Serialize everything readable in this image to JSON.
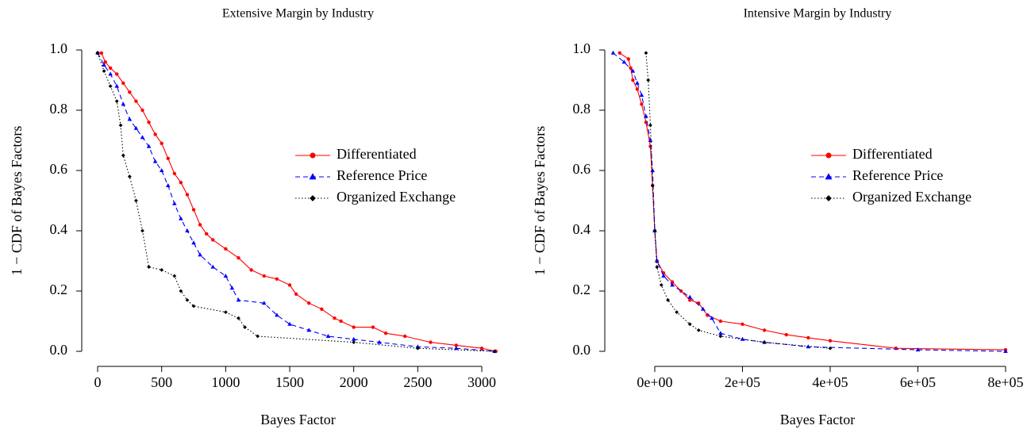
{
  "chart_data": [
    {
      "type": "line",
      "title": "Extensive Margin by Industry",
      "x_label": "Bayes Factor",
      "y_label": "1 − CDF of Bayes Factors",
      "xlim": [
        -124,
        3130
      ],
      "ylim": [
        -0.05,
        1.05
      ],
      "xticks": [
        0,
        500,
        1000,
        1500,
        2000,
        2500,
        3000
      ],
      "yticks": [
        {
          "value": 0,
          "label": "0.0"
        },
        0.2,
        0.4,
        0.6,
        0.8,
        {
          "value": 1,
          "label": "1.0"
        }
      ],
      "legend": "right",
      "series": [
        {
          "name": "Differentiated",
          "color": "#ff0000",
          "marker": "circle",
          "dash": "solid",
          "x": [
            0,
            30,
            60,
            100,
            150,
            200,
            250,
            300,
            350,
            400,
            450,
            500,
            550,
            600,
            650,
            700,
            750,
            800,
            850,
            900,
            1000,
            1100,
            1200,
            1300,
            1400,
            1500,
            1550,
            1650,
            1750,
            1850,
            1900,
            2000,
            2150,
            2250,
            2400,
            2600,
            2800,
            3000,
            3110
          ],
          "values": [
            0.99,
            0.99,
            0.96,
            0.94,
            0.92,
            0.89,
            0.86,
            0.83,
            0.8,
            0.76,
            0.72,
            0.69,
            0.64,
            0.59,
            0.56,
            0.52,
            0.47,
            0.42,
            0.39,
            0.37,
            0.34,
            0.31,
            0.27,
            0.25,
            0.24,
            0.22,
            0.19,
            0.16,
            0.14,
            0.11,
            0.1,
            0.08,
            0.08,
            0.06,
            0.05,
            0.03,
            0.02,
            0.01,
            0.0
          ]
        },
        {
          "name": "Reference Price",
          "color": "#0000ff",
          "marker": "triangle",
          "dash": "dashed",
          "x": [
            0,
            50,
            100,
            150,
            200,
            250,
            300,
            350,
            400,
            450,
            500,
            550,
            600,
            650,
            700,
            750,
            800,
            900,
            1000,
            1050,
            1100,
            1300,
            1400,
            1500,
            1650,
            1800,
            2000,
            2200,
            2500,
            2800,
            3100
          ],
          "values": [
            0.99,
            0.95,
            0.92,
            0.88,
            0.82,
            0.77,
            0.74,
            0.71,
            0.68,
            0.63,
            0.6,
            0.55,
            0.49,
            0.44,
            0.4,
            0.36,
            0.32,
            0.28,
            0.25,
            0.21,
            0.17,
            0.16,
            0.12,
            0.09,
            0.07,
            0.05,
            0.04,
            0.03,
            0.015,
            0.01,
            0.0
          ]
        },
        {
          "name": "Organized Exchange",
          "color": "#000000",
          "marker": "diamond",
          "dash": "dotted",
          "x": [
            0,
            50,
            100,
            150,
            180,
            200,
            250,
            300,
            350,
            400,
            500,
            600,
            650,
            700,
            750,
            1000,
            1100,
            1150,
            1250,
            2000,
            2500,
            3100
          ],
          "values": [
            0.99,
            0.93,
            0.88,
            0.83,
            0.75,
            0.65,
            0.58,
            0.5,
            0.4,
            0.28,
            0.27,
            0.25,
            0.2,
            0.17,
            0.15,
            0.13,
            0.11,
            0.08,
            0.05,
            0.03,
            0.01,
            0.0
          ]
        }
      ]
    },
    {
      "type": "line",
      "title": "Intensive Margin by Industry",
      "x_label": "Bayes Factor",
      "y_label": "1 − CDF of Bayes Factors",
      "xlim": [
        -114000,
        820000
      ],
      "ylim": [
        -0.05,
        1.05
      ],
      "xticks": [
        {
          "value": 0,
          "label": "0e+00"
        },
        {
          "value": 200000,
          "label": "2e+05"
        },
        {
          "value": 400000,
          "label": "4e+05"
        },
        {
          "value": 600000,
          "label": "6e+05"
        },
        {
          "value": 800000,
          "label": "8e+05"
        }
      ],
      "yticks": [
        {
          "value": 0,
          "label": "0.0"
        },
        0.2,
        0.4,
        0.6,
        0.8,
        {
          "value": 1,
          "label": "1.0"
        }
      ],
      "legend": "right",
      "series": [
        {
          "name": "Differentiated",
          "color": "#ff0000",
          "marker": "circle",
          "dash": "solid",
          "x": [
            -80000,
            -60000,
            -55000,
            -50000,
            -40000,
            -30000,
            -20000,
            -10000,
            -5000,
            0,
            5000,
            20000,
            40000,
            60000,
            80000,
            100000,
            120000,
            150000,
            200000,
            250000,
            300000,
            350000,
            400000,
            550000,
            800000
          ],
          "values": [
            0.99,
            0.97,
            0.94,
            0.9,
            0.87,
            0.82,
            0.76,
            0.68,
            0.55,
            0.4,
            0.3,
            0.26,
            0.23,
            0.2,
            0.17,
            0.16,
            0.12,
            0.1,
            0.09,
            0.07,
            0.055,
            0.045,
            0.035,
            0.01,
            0.005
          ]
        },
        {
          "name": "Reference Price",
          "color": "#0000ff",
          "marker": "triangle",
          "dash": "dashed",
          "x": [
            -95000,
            -70000,
            -50000,
            -40000,
            -30000,
            -20000,
            -10000,
            -5000,
            0,
            5000,
            20000,
            40000,
            80000,
            110000,
            130000,
            150000,
            200000,
            250000,
            350000,
            600000,
            800000
          ],
          "values": [
            0.99,
            0.96,
            0.93,
            0.89,
            0.85,
            0.78,
            0.7,
            0.6,
            0.4,
            0.3,
            0.25,
            0.22,
            0.18,
            0.14,
            0.11,
            0.06,
            0.04,
            0.03,
            0.015,
            0.005,
            0.0
          ]
        },
        {
          "name": "Organized Exchange",
          "color": "#000000",
          "marker": "diamond",
          "dash": "dotted",
          "x": [
            -20000,
            -15000,
            -10000,
            -5000,
            0,
            5000,
            15000,
            30000,
            50000,
            80000,
            100000,
            150000,
            250000,
            400000
          ],
          "values": [
            0.99,
            0.9,
            0.75,
            0.55,
            0.4,
            0.28,
            0.22,
            0.17,
            0.13,
            0.09,
            0.07,
            0.05,
            0.03,
            0.01
          ]
        }
      ]
    }
  ]
}
